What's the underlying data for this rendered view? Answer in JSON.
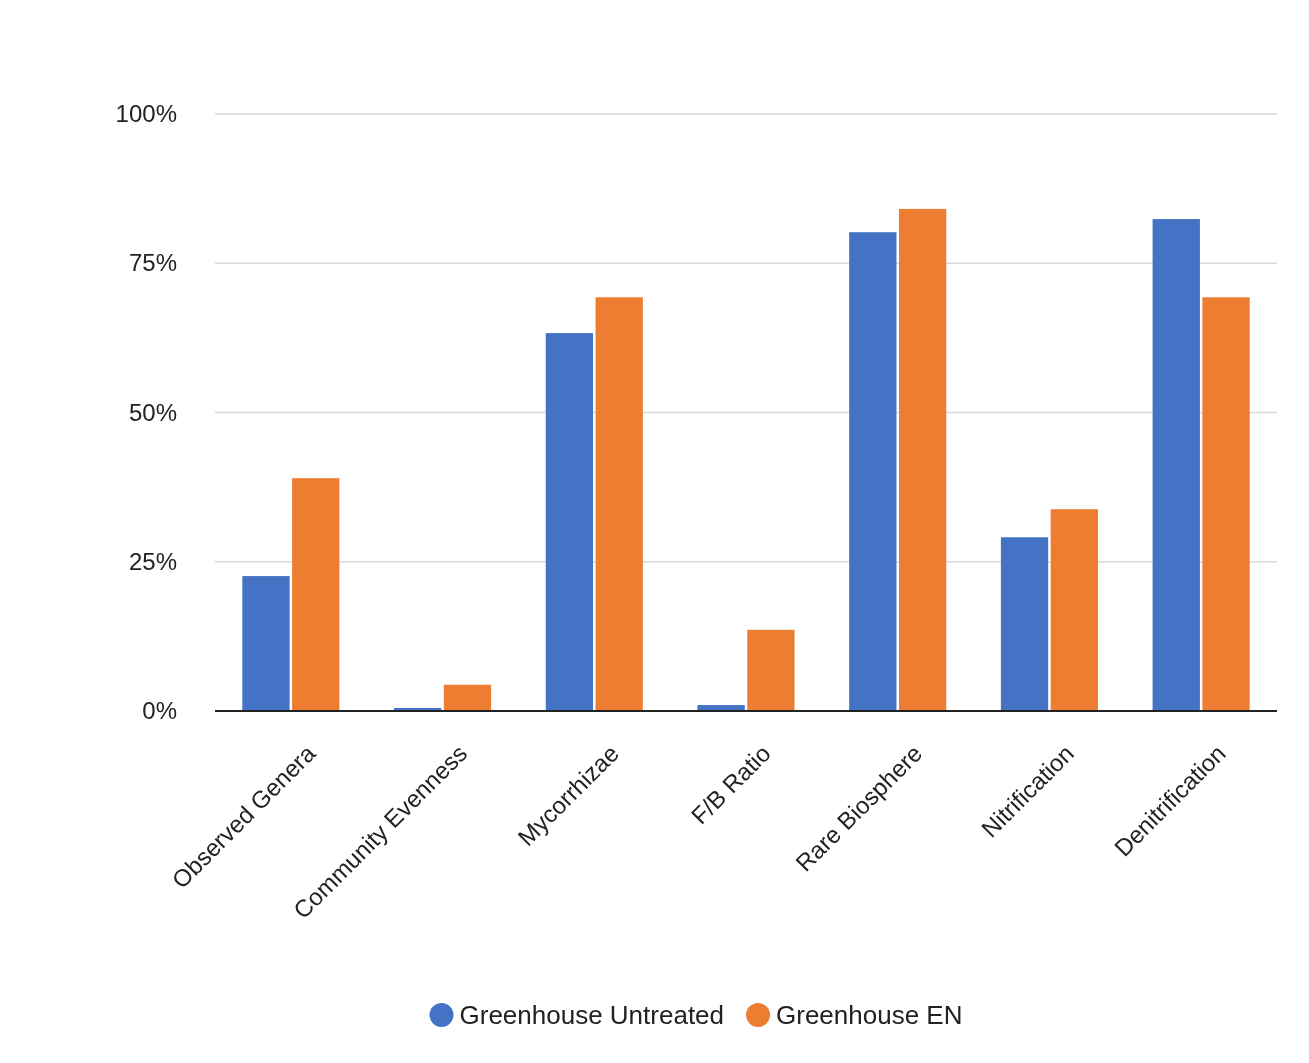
{
  "chart_data": {
    "type": "bar",
    "categories": [
      "Observed Genera",
      "Community Evenness",
      "Mycorrhizae",
      "F/B Ratio",
      "Rare Biosphere",
      "Nitrification",
      "Denitrification"
    ],
    "series": [
      {
        "name": "Greenhouse Untreated",
        "color": "#4472c4",
        "values": [
          22.6,
          0.5,
          63.3,
          1.0,
          80.2,
          29.1,
          82.4
        ]
      },
      {
        "name": "Greenhouse EN",
        "color": "#ed7d31",
        "values": [
          39.0,
          4.4,
          69.3,
          13.6,
          84.1,
          33.8,
          69.3
        ]
      }
    ],
    "ylim": [
      0,
      100
    ],
    "yticks": [
      {
        "value": 0,
        "label": "0%"
      },
      {
        "value": 25,
        "label": "25%"
      },
      {
        "value": 50,
        "label": "50%"
      },
      {
        "value": 75,
        "label": "75%"
      },
      {
        "value": 100,
        "label": "100%"
      }
    ],
    "grid": "y",
    "legend": "bottom"
  }
}
